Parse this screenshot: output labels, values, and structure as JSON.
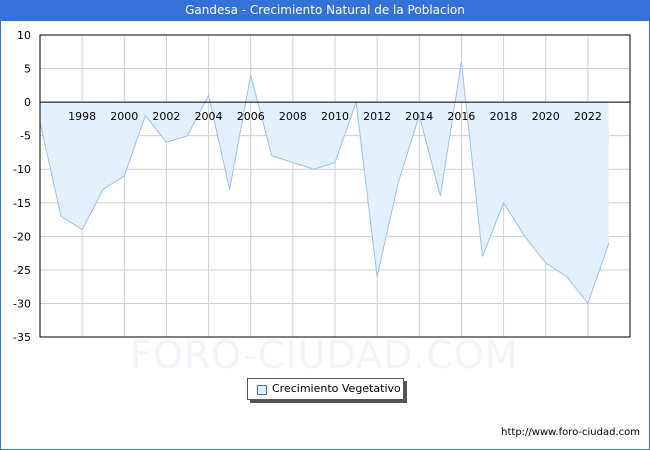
{
  "header": {
    "title": "Gandesa - Crecimiento Natural de la Poblacion"
  },
  "legend": {
    "label": "Crecimiento Vegetativo",
    "swatch_color": "#dfeeff"
  },
  "footer": {
    "url": "http://www.foro-ciudad.com"
  },
  "watermark": "FORO-CIUDAD.COM",
  "colors": {
    "title_bg": "#3472d9",
    "fill": "#e3f0fc",
    "line": "#9dbff0",
    "grid": "#d0d0d0"
  },
  "chart_data": {
    "type": "area",
    "title": "Gandesa - Crecimiento Natural de la Poblacion",
    "xlabel": "",
    "ylabel": "",
    "x": [
      1996,
      1997,
      1998,
      1999,
      2000,
      2001,
      2002,
      2003,
      2004,
      2005,
      2006,
      2007,
      2008,
      2009,
      2010,
      2011,
      2012,
      2013,
      2014,
      2015,
      2016,
      2017,
      2018,
      2019,
      2020,
      2021,
      2022,
      2023
    ],
    "series": [
      {
        "name": "Crecimiento Vegetativo",
        "values": [
          -3,
          -17,
          -19,
          -13,
          -11,
          -2,
          -6,
          -5,
          1,
          -13,
          4,
          -8,
          -9,
          -10,
          -9,
          0,
          -26,
          -12,
          -2,
          -14,
          6,
          -23,
          -15,
          -20,
          -24,
          -26,
          -30,
          -21
        ]
      }
    ],
    "x_tick_labels": [
      "1998",
      "2000",
      "2002",
      "2004",
      "2006",
      "2008",
      "2010",
      "2012",
      "2014",
      "2016",
      "2018",
      "2020",
      "2022"
    ],
    "y_tick_labels": [
      "10",
      "5",
      "0",
      "-5",
      "-10",
      "-15",
      "-20",
      "-25",
      "-30",
      "-35"
    ],
    "ylim": [
      -35,
      10
    ],
    "xlim": [
      1996,
      2024
    ],
    "grid": true,
    "legend_position": "bottom"
  }
}
